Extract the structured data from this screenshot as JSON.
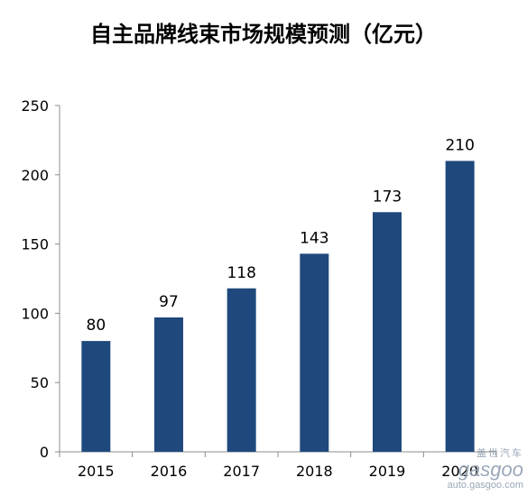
{
  "chart_data": {
    "type": "bar",
    "title": "自主品牌线束市场规模预测（亿元）",
    "categories": [
      "2015",
      "2016",
      "2017",
      "2018",
      "2019",
      "2020"
    ],
    "values": [
      80,
      97,
      118,
      143,
      173,
      210
    ],
    "data_labels": [
      "80",
      "97",
      "118",
      "143",
      "173",
      "210"
    ],
    "ylim": [
      0,
      250
    ],
    "yticks": [
      "0",
      "50",
      "100",
      "150",
      "200",
      "250"
    ],
    "grid": false,
    "legend": "none",
    "bar_color": "#1F497D"
  },
  "watermark": {
    "chinese": "盖世汽车",
    "brand": "gasgoo",
    "url": "auto.gasgoo.com"
  }
}
